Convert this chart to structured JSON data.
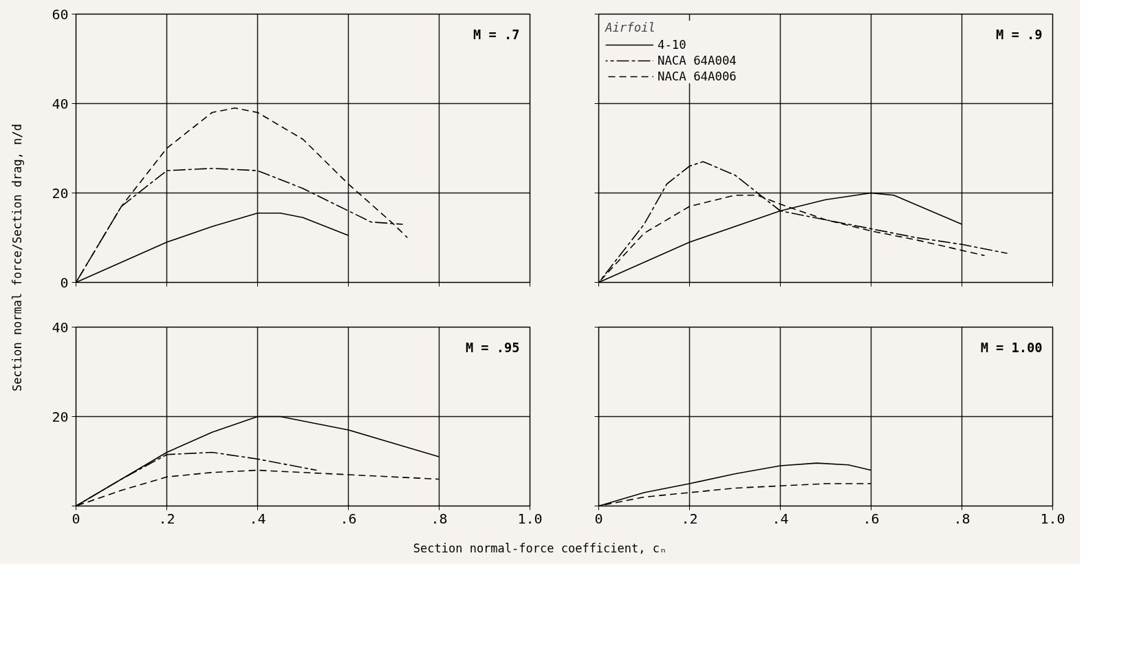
{
  "chart_data": [
    {
      "type": "line",
      "annotations": [
        "M = .7"
      ],
      "xlim": [
        0,
        1.0
      ],
      "xticks": [
        0,
        0.2,
        0.4,
        0.6,
        0.8,
        1.0
      ],
      "ylim": [
        0,
        60
      ],
      "yticks": [
        0,
        20,
        40,
        60
      ],
      "grid": true,
      "tick_labels": "y",
      "series": [
        {
          "color": "#000000",
          "line_style": "solid",
          "x": [
            0,
            0.1,
            0.2,
            0.3,
            0.4,
            0.45,
            0.5,
            0.6
          ],
          "values": [
            0,
            4.5,
            9,
            12.5,
            15.5,
            15.5,
            14.5,
            10.5
          ]
        },
        {
          "color": "#000000",
          "line_style": "dashdot",
          "x": [
            0,
            0.1,
            0.2,
            0.3,
            0.4,
            0.5,
            0.6,
            0.65,
            0.72
          ],
          "values": [
            0,
            17,
            25,
            25.5,
            25,
            21,
            16,
            13.5,
            13
          ]
        },
        {
          "color": "#000000",
          "line_style": "dashed",
          "x": [
            0,
            0.1,
            0.2,
            0.3,
            0.35,
            0.4,
            0.5,
            0.6,
            0.7,
            0.73
          ],
          "values": [
            0,
            17,
            30,
            38,
            39,
            38,
            32,
            22,
            13,
            10
          ]
        }
      ]
    },
    {
      "type": "line",
      "annotations": [
        "M = .9"
      ],
      "xlim": [
        0,
        1.0
      ],
      "xticks": [
        0,
        0.2,
        0.4,
        0.6,
        0.8,
        1.0
      ],
      "ylim": [
        0,
        60
      ],
      "yticks": [
        0,
        20,
        40,
        60
      ],
      "grid": true,
      "tick_labels": false,
      "legend": "top left",
      "legend_title": "Airfoil",
      "series": [
        {
          "name": "4-10",
          "color": "#000000",
          "line_style": "solid",
          "x": [
            0,
            0.2,
            0.4,
            0.5,
            0.6,
            0.65,
            0.8
          ],
          "values": [
            0,
            9,
            16,
            18.5,
            20,
            19.5,
            13
          ]
        },
        {
          "name": "NACA 64A004",
          "color": "#000000",
          "line_style": "dashdot",
          "x": [
            0,
            0.1,
            0.15,
            0.2,
            0.23,
            0.3,
            0.4,
            0.5,
            0.6,
            0.7,
            0.8,
            0.9
          ],
          "values": [
            0,
            13,
            22,
            26,
            27,
            24,
            16,
            14,
            12,
            10,
            8.5,
            6.5
          ]
        },
        {
          "name": "NACA 64A006",
          "color": "#000000",
          "line_style": "dashed",
          "x": [
            0,
            0.1,
            0.2,
            0.3,
            0.35,
            0.4,
            0.5,
            0.6,
            0.7,
            0.85
          ],
          "values": [
            0,
            11,
            17,
            19.5,
            19.5,
            17.5,
            14,
            11.5,
            9.5,
            6
          ]
        }
      ]
    },
    {
      "type": "line",
      "annotations": [
        "M = .95"
      ],
      "xlabel": "Section normal-force coefficient,  cₙ",
      "ylabel": "Section normal force/Section drag,  n/d",
      "xlim": [
        0,
        1.0
      ],
      "xticks": [
        0,
        {
          "value": 0.2,
          "label": ".2"
        },
        {
          "value": 0.4,
          "label": ".4"
        },
        {
          "value": 0.6,
          "label": ".6"
        },
        {
          "value": 0.8,
          "label": ".8"
        },
        {
          "value": 1.0,
          "label": "1.0"
        }
      ],
      "ylim": [
        0,
        40
      ],
      "yticks": [
        {
          "value": 0,
          "label": null
        },
        20,
        40
      ],
      "grid": true,
      "series": [
        {
          "color": "#000000",
          "line_style": "solid",
          "x": [
            0,
            0.1,
            0.2,
            0.3,
            0.4,
            0.45,
            0.5,
            0.6,
            0.7,
            0.8
          ],
          "values": [
            0,
            6,
            12,
            16.5,
            20,
            20,
            19,
            17,
            14,
            11
          ]
        },
        {
          "color": "#000000",
          "line_style": "dashdot",
          "x": [
            0,
            0.1,
            0.2,
            0.3,
            0.4,
            0.53
          ],
          "values": [
            0,
            6,
            11.5,
            12,
            10.5,
            8
          ]
        },
        {
          "color": "#000000",
          "line_style": "dashed",
          "x": [
            0,
            0.1,
            0.2,
            0.3,
            0.4,
            0.5,
            0.6,
            0.7,
            0.8
          ],
          "values": [
            0,
            3.5,
            6.5,
            7.5,
            8,
            7.5,
            7,
            6.5,
            6
          ]
        }
      ]
    },
    {
      "type": "line",
      "annotations": [
        "M = 1.00"
      ],
      "xlim": [
        0,
        1.0
      ],
      "xticks": [
        0,
        {
          "value": 0.2,
          "label": ".2"
        },
        {
          "value": 0.4,
          "label": ".4"
        },
        {
          "value": 0.6,
          "label": ".6"
        },
        {
          "value": 0.8,
          "label": ".8"
        },
        {
          "value": 1.0,
          "label": "1.0"
        }
      ],
      "ylim": [
        0,
        40
      ],
      "yticks": [
        0,
        20,
        40
      ],
      "grid": true,
      "tick_labels": "x",
      "series": [
        {
          "color": "#000000",
          "line_style": "solid",
          "x": [
            0,
            0.1,
            0.2,
            0.3,
            0.4,
            0.48,
            0.55,
            0.6
          ],
          "values": [
            0,
            3,
            5,
            7.2,
            9,
            9.6,
            9.2,
            8
          ]
        },
        {
          "color": "#000000",
          "line_style": "dashed",
          "x": [
            0,
            0.1,
            0.2,
            0.3,
            0.4,
            0.5,
            0.6
          ],
          "values": [
            0,
            2,
            3,
            4,
            4.5,
            5,
            5
          ]
        }
      ]
    }
  ]
}
